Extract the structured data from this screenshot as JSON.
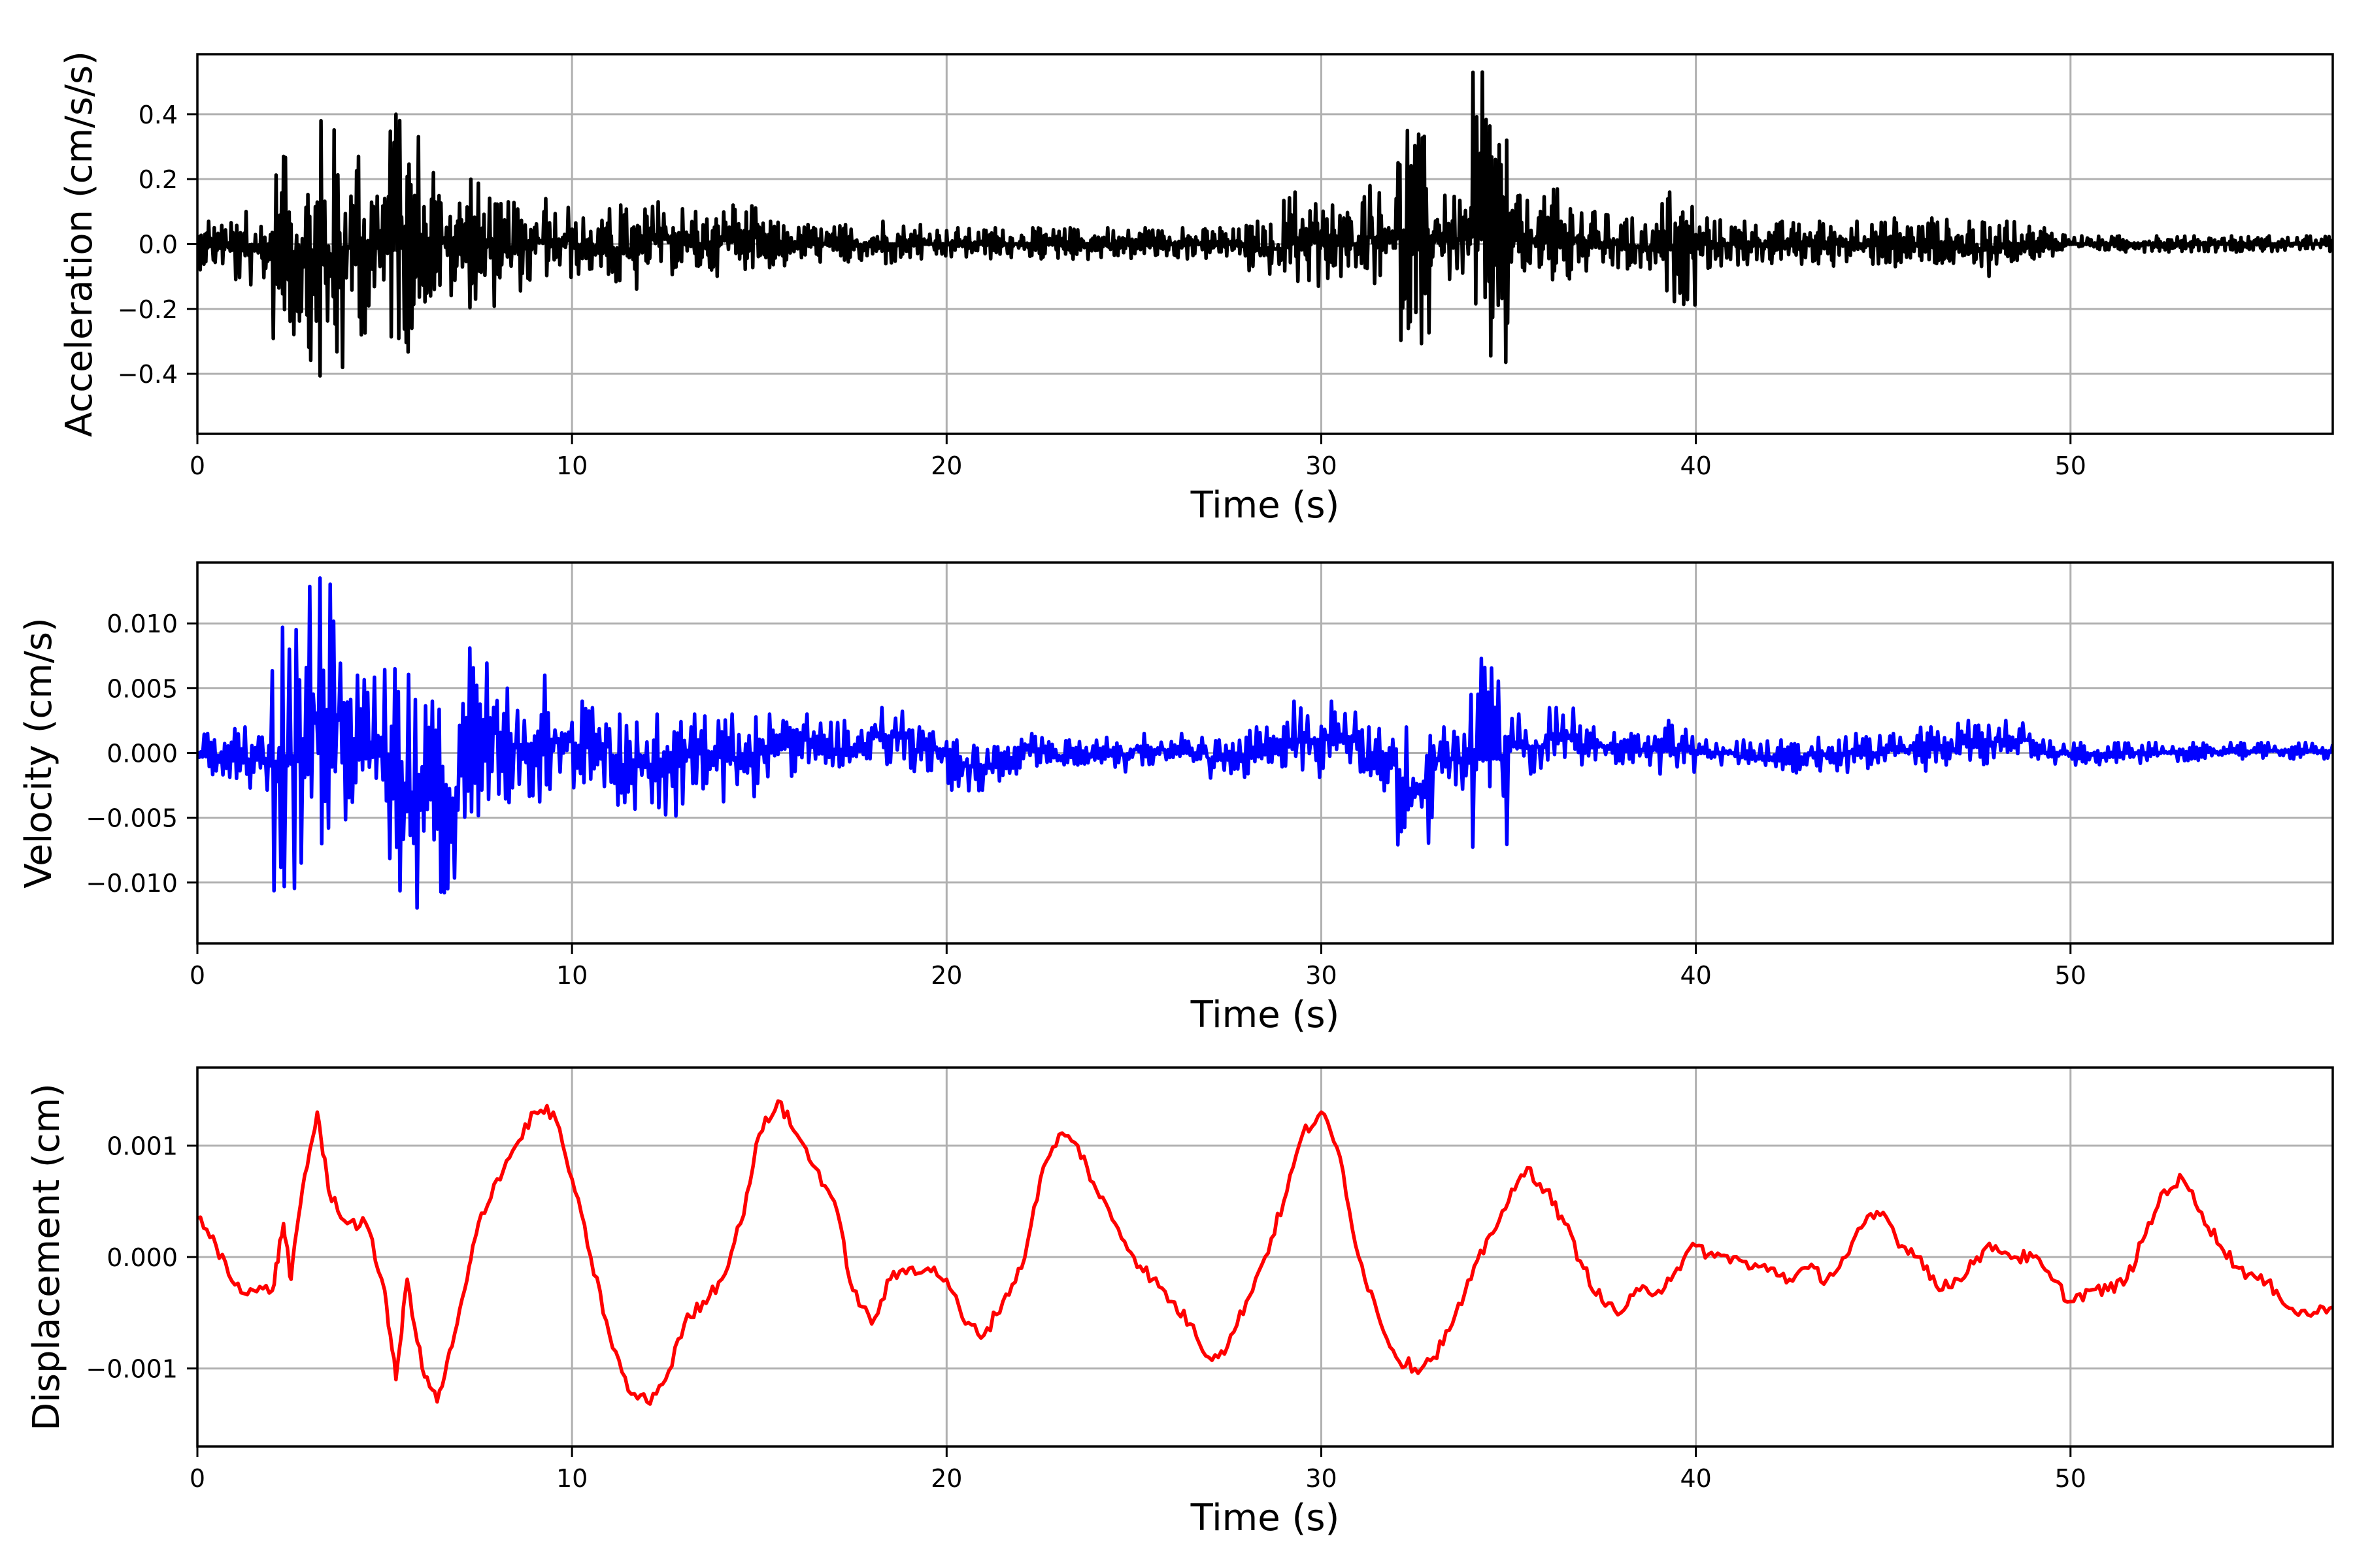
{
  "figure": {
    "background": "#ffffff",
    "grid_color": "#b0b0b0"
  },
  "chart_data": [
    {
      "type": "line",
      "title": "",
      "xlabel": "Time (s)",
      "ylabel": "Acceleration (cm/s/s)",
      "color": "#000000",
      "xlim": [
        0,
        57
      ],
      "ylim": [
        -0.585,
        0.585
      ],
      "xticks": [
        0,
        10,
        20,
        30,
        40,
        50
      ],
      "xtick_labels": [
        "0",
        "10",
        "20",
        "30",
        "40",
        "50"
      ],
      "yticks": [
        -0.4,
        -0.2,
        0.0,
        0.2,
        0.4
      ],
      "ytick_labels": [
        "−0.4",
        "−0.2",
        "0.0",
        "0.2",
        "0.4"
      ],
      "grid": true,
      "envelope_per_second": {
        "t": [
          0,
          1,
          2,
          3,
          4,
          5,
          6,
          7,
          8,
          9,
          10,
          11,
          12,
          13,
          14,
          15,
          16,
          17,
          18,
          19,
          20,
          21,
          22,
          23,
          24,
          25,
          26,
          27,
          28,
          29,
          30,
          31,
          32,
          33,
          34,
          35,
          36,
          37,
          38,
          39,
          40,
          41,
          42,
          43,
          44,
          45,
          46,
          47,
          48,
          49,
          50,
          51,
          52,
          53,
          54,
          55,
          56,
          57
        ],
        "max": [
          0.07,
          0.1,
          0.27,
          0.38,
          0.27,
          0.4,
          0.22,
          0.2,
          0.13,
          0.14,
          0.08,
          0.12,
          0.13,
          0.1,
          0.12,
          0.07,
          0.06,
          0.06,
          0.07,
          0.06,
          0.05,
          0.05,
          0.05,
          0.05,
          0.05,
          0.05,
          0.05,
          0.05,
          0.07,
          0.16,
          0.12,
          0.18,
          0.35,
          0.15,
          0.53,
          0.15,
          0.17,
          0.1,
          0.08,
          0.16,
          0.08,
          0.07,
          0.07,
          0.07,
          0.07,
          0.08,
          0.08,
          0.07,
          0.07,
          0.05,
          0.025,
          0.025,
          0.025,
          0.025,
          0.025,
          0.025,
          0.025,
          0.025
        ],
        "min": [
          -0.08,
          -0.14,
          -0.32,
          -0.48,
          -0.29,
          -0.34,
          -0.2,
          -0.2,
          -0.15,
          -0.12,
          -0.1,
          -0.16,
          -0.1,
          -0.1,
          -0.08,
          -0.08,
          -0.06,
          -0.07,
          -0.07,
          -0.06,
          -0.05,
          -0.05,
          -0.05,
          -0.05,
          -0.05,
          -0.05,
          -0.05,
          -0.05,
          -0.1,
          -0.14,
          -0.12,
          -0.14,
          -0.31,
          -0.12,
          -0.46,
          -0.12,
          -0.14,
          -0.1,
          -0.1,
          -0.19,
          -0.08,
          -0.07,
          -0.07,
          -0.07,
          -0.07,
          -0.08,
          -0.08,
          -0.1,
          -0.07,
          -0.05,
          -0.025,
          -0.025,
          -0.025,
          -0.025,
          -0.025,
          -0.025,
          -0.025,
          -0.025
        ]
      }
    },
    {
      "type": "line",
      "title": "",
      "xlabel": "Time (s)",
      "ylabel": "Velocity (cm/s)",
      "color": "#0000ff",
      "xlim": [
        0,
        57
      ],
      "ylim": [
        -0.0147,
        0.0147
      ],
      "xticks": [
        0,
        10,
        20,
        30,
        40,
        50
      ],
      "xtick_labels": [
        "0",
        "10",
        "20",
        "30",
        "40",
        "50"
      ],
      "yticks": [
        -0.01,
        -0.005,
        0.0,
        0.005,
        0.01
      ],
      "ytick_labels": [
        "−0.010",
        "−0.005",
        "0.000",
        "0.005",
        "0.010"
      ],
      "grid": true,
      "envelope_per_second": {
        "t": [
          0,
          1,
          2,
          3,
          4,
          5,
          6,
          7,
          8,
          9,
          10,
          11,
          12,
          13,
          14,
          15,
          16,
          17,
          18,
          19,
          20,
          21,
          22,
          23,
          24,
          25,
          26,
          27,
          28,
          29,
          30,
          31,
          32,
          33,
          34,
          35,
          36,
          37,
          38,
          39,
          40,
          41,
          42,
          43,
          44,
          45,
          46,
          47,
          48,
          49,
          50,
          51,
          52,
          53,
          54,
          55,
          56,
          57
        ],
        "max": [
          0.0015,
          0.002,
          0.0097,
          0.0135,
          0.006,
          0.0065,
          0.004,
          0.0081,
          0.005,
          0.006,
          0.004,
          0.003,
          0.003,
          0.003,
          0.003,
          0.003,
          0.003,
          0.0025,
          0.0035,
          0.002,
          0.001,
          0.0005,
          0.0015,
          0.001,
          0.0012,
          0.0015,
          0.0015,
          0.001,
          0.002,
          0.004,
          0.004,
          0.002,
          0.002,
          0.002,
          0.0073,
          0.003,
          0.0035,
          0.002,
          0.0015,
          0.0025,
          0.001,
          0.001,
          0.001,
          0.0012,
          0.0015,
          0.0015,
          0.002,
          0.0025,
          0.0025,
          0.001,
          0.0008,
          0.0008,
          0.0008,
          0.0008,
          0.0008,
          0.0008,
          0.0008,
          0.0008
        ],
        "min": [
          -0.002,
          -0.003,
          -0.011,
          -0.008,
          -0.006,
          -0.0133,
          -0.011,
          -0.005,
          -0.004,
          -0.004,
          -0.003,
          -0.005,
          -0.005,
          -0.003,
          -0.004,
          -0.002,
          -0.001,
          -0.002,
          -0.001,
          -0.0015,
          -0.003,
          -0.0025,
          -0.001,
          -0.0015,
          -0.0015,
          -0.001,
          -0.0015,
          -0.002,
          -0.002,
          -0.002,
          -0.0015,
          -0.003,
          -0.0075,
          -0.003,
          -0.0082,
          -0.002,
          -0.001,
          -0.001,
          -0.001,
          -0.002,
          -0.001,
          -0.0015,
          -0.002,
          -0.0015,
          -0.0015,
          -0.001,
          -0.0015,
          -0.001,
          -0.0005,
          -0.001,
          -0.001,
          -0.0008,
          -0.0008,
          -0.0006,
          -0.0006,
          -0.0005,
          -0.0005,
          -0.0005
        ]
      }
    },
    {
      "type": "line",
      "title": "",
      "xlabel": "Time (s)",
      "ylabel": "Displacement (cm)",
      "color": "#ff0000",
      "xlim": [
        0,
        57
      ],
      "ylim": [
        -0.0017,
        0.0017
      ],
      "xticks": [
        0,
        10,
        20,
        30,
        40,
        50
      ],
      "xtick_labels": [
        "0",
        "10",
        "20",
        "30",
        "40",
        "50"
      ],
      "yticks": [
        -0.001,
        0.0,
        0.001
      ],
      "ytick_labels": [
        "−0.001",
        "0.000",
        "0.001"
      ],
      "grid": true,
      "x": [
        0,
        0.5,
        1,
        1.5,
        2,
        2.3,
        2.5,
        2.8,
        3.2,
        3.5,
        4,
        4.5,
        5,
        5.3,
        5.6,
        6,
        6.4,
        6.8,
        7.2,
        7.5,
        8,
        8.5,
        9,
        9.5,
        10,
        10.5,
        11,
        11.5,
        12,
        12.5,
        13,
        13.5,
        14,
        14.5,
        15,
        15.5,
        16,
        16.5,
        17,
        17.5,
        18,
        18.5,
        19,
        19.5,
        20,
        20.5,
        21,
        21.5,
        22,
        22.5,
        23,
        23.5,
        24,
        24.5,
        25,
        25.5,
        26,
        26.5,
        27,
        27.5,
        28,
        28.5,
        29,
        29.5,
        30,
        30.5,
        31,
        31.5,
        32,
        32.5,
        33,
        33.5,
        34,
        34.5,
        35,
        35.5,
        36,
        36.5,
        37,
        37.5,
        38,
        38.5,
        39,
        39.5,
        40,
        40.5,
        41,
        41.5,
        42,
        42.5,
        43,
        43.5,
        44,
        44.5,
        45,
        45.5,
        46,
        46.5,
        47,
        47.5,
        48,
        48.5,
        49,
        49.5,
        50,
        50.5,
        51,
        51.5,
        52,
        52.5,
        53,
        53.5,
        54,
        54.5,
        55,
        55.5,
        56,
        56.5,
        57
      ],
      "y": [
        0.00035,
        0.0001,
        -0.00025,
        -0.0003,
        -0.0003,
        0.0003,
        -0.0002,
        0.0006,
        0.0013,
        0.0006,
        0.0003,
        0.0003,
        -0.0003,
        -0.0011,
        -0.0002,
        -0.001,
        -0.0013,
        -0.0008,
        -0.0002,
        0.0003,
        0.0007,
        0.001,
        0.0013,
        0.0013,
        0.0007,
        0.0,
        -0.0007,
        -0.0012,
        -0.0013,
        -0.0011,
        -0.0006,
        -0.0004,
        -0.0002,
        0.0003,
        0.0011,
        0.0014,
        0.0011,
        0.0008,
        0.0005,
        -0.0003,
        -0.0006,
        -0.0002,
        -0.0001,
        -0.0001,
        -0.0002,
        -0.0006,
        -0.0007,
        -0.0004,
        -0.0001,
        0.0007,
        0.0011,
        0.001,
        0.0006,
        0.0003,
        0.0,
        -0.0002,
        -0.0004,
        -0.0006,
        -0.0009,
        -0.0008,
        -0.0004,
        0.0,
        0.0005,
        0.0011,
        0.0013,
        0.0009,
        0.0,
        -0.0005,
        -0.0009,
        -0.001,
        -0.0009,
        -0.0006,
        -0.0002,
        0.0002,
        0.0005,
        0.0008,
        0.0006,
        0.0003,
        -0.0001,
        -0.0004,
        -0.0005,
        -0.0003,
        -0.0003,
        -0.0001,
        0.0001,
        0.0,
        0.0,
        -0.0001,
        -0.0001,
        -0.0002,
        -0.0001,
        -0.0002,
        0.0,
        0.0003,
        0.0004,
        0.0001,
        0.0,
        -0.0003,
        -0.0002,
        0.0,
        0.0001,
        0.0,
        0.0,
        -0.0002,
        -0.0004,
        -0.0003,
        -0.0003,
        -0.0002,
        0.0002,
        0.0006,
        0.0007,
        0.0004,
        0.0001,
        -0.0001,
        -0.0002,
        -0.0003,
        -0.0005,
        -0.0005,
        -0.00045
      ]
    }
  ]
}
